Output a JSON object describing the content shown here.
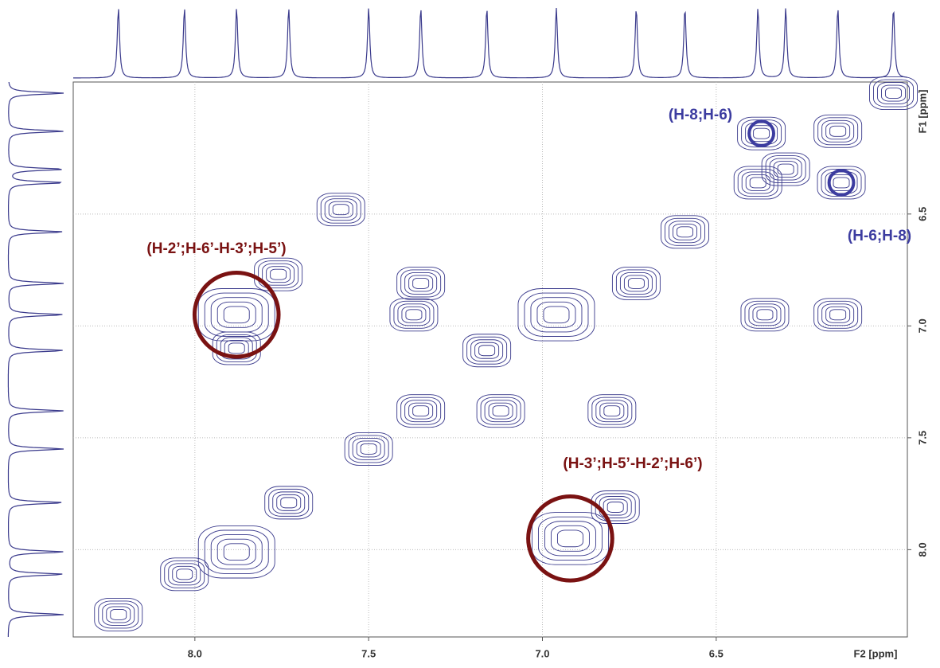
{
  "chart_data": {
    "type": "contour",
    "x": [
      8.22,
      8.03,
      7.88,
      7.73,
      7.5,
      7.35,
      7.16,
      6.96,
      6.73,
      6.59,
      6.38,
      6.3,
      6.15,
      5.99,
      7.88,
      6.92,
      6.37,
      6.14,
      7.76,
      7.35,
      6.79,
      6.8,
      7.58,
      7.37,
      7.12,
      6.15,
      6.36,
      7.88
    ],
    "y": [
      8.29,
      8.11,
      8.01,
      7.79,
      7.55,
      7.38,
      7.11,
      6.95,
      6.81,
      6.58,
      6.36,
      6.3,
      6.13,
      5.96,
      6.95,
      7.95,
      6.14,
      6.36,
      6.77,
      6.81,
      7.81,
      7.38,
      6.48,
      6.95,
      7.38,
      6.95,
      6.95,
      7.1
    ],
    "color": "#3a3a8c",
    "xlim": [
      8.35,
      5.95
    ],
    "ylim": [
      5.91,
      8.39
    ],
    "xticks": [
      {
        "value": 8.0,
        "label": "8.0"
      },
      {
        "value": 7.5,
        "label": "7.5"
      },
      {
        "value": 7.0,
        "label": "7.0"
      },
      {
        "value": 6.5,
        "label": "6.5"
      }
    ],
    "yticks": [
      {
        "value": 6.5,
        "label": "6.5"
      },
      {
        "value": 7.0,
        "label": "7.0"
      },
      {
        "value": 7.5,
        "label": "7.5"
      },
      {
        "value": 8.0,
        "label": "8.0"
      }
    ],
    "xlabel": "F2 [ppm]",
    "ylabel": "F1 [ppm]",
    "grid": true,
    "annotations": [
      {
        "text": "(H-8;H-6)",
        "color": "#3c3ca0"
      },
      {
        "text": "(H-6;H-8)",
        "color": "#3c3ca0"
      },
      {
        "text": "(H-2’;H-6’-H-3’;H-5’)",
        "color": "#7a1212"
      },
      {
        "text": "(H-3’;H-5’-H-2’;H-6’)",
        "color": "#7a1212"
      }
    ]
  }
}
